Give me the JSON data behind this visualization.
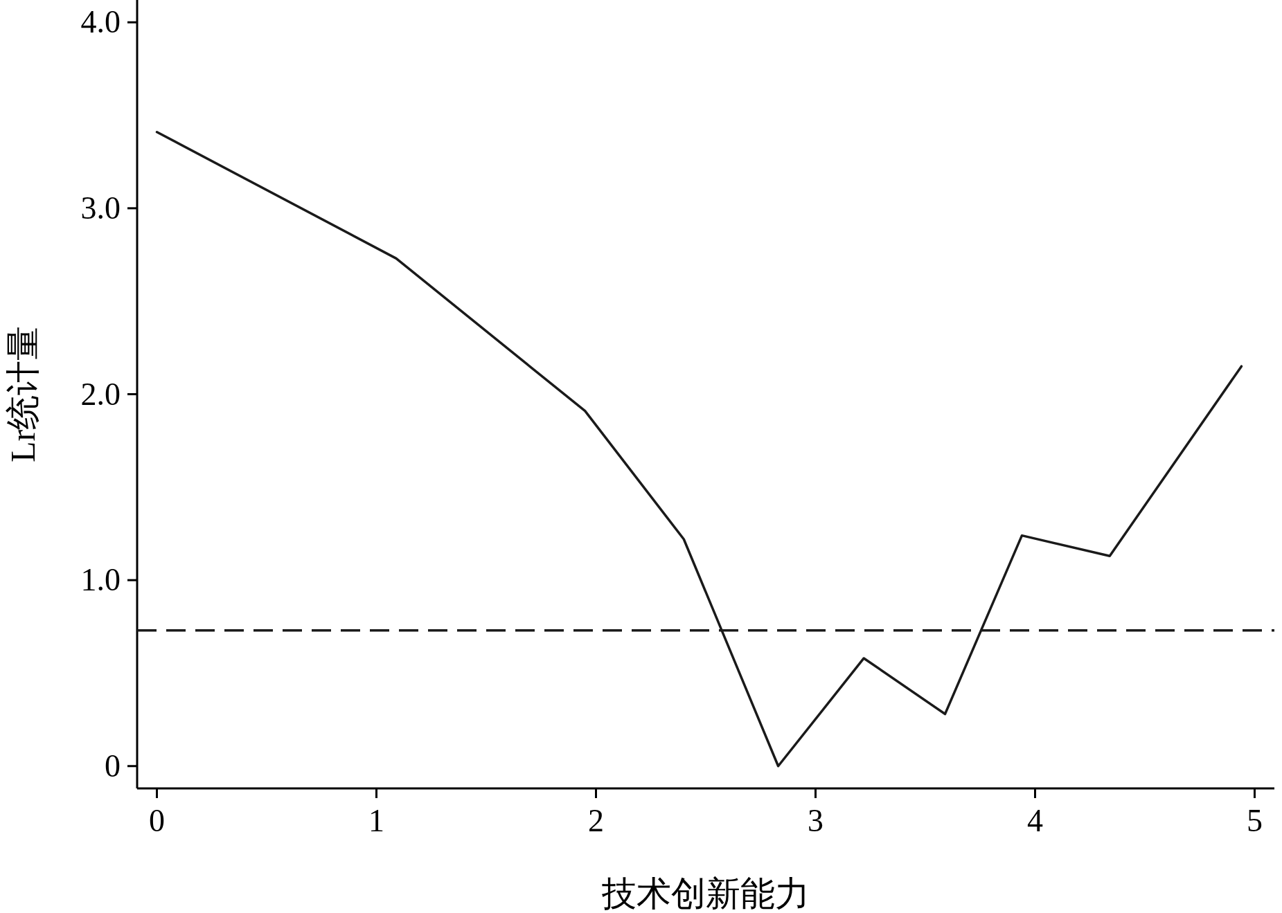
{
  "chart_data": {
    "type": "line",
    "xlabel": "技术创新能力",
    "ylabel": "Lr统计量",
    "x": [
      0,
      1.09,
      1.95,
      2.4,
      2.83,
      3.22,
      3.59,
      3.94,
      4.34,
      4.94
    ],
    "series": [
      {
        "color": "#1a1a1a",
        "values": [
          3.41,
          2.73,
          1.91,
          1.22,
          0.0,
          0.58,
          0.28,
          1.24,
          1.13,
          2.15
        ]
      }
    ],
    "xlim": [
      -0.09,
      5.09
    ],
    "xticks": [
      0,
      1,
      2,
      3,
      4,
      5
    ],
    "ylim": [
      -0.12,
      4.12
    ],
    "yticks": [
      {
        "value": 0,
        "label": "0"
      },
      {
        "value": 1,
        "label": "1.0"
      },
      {
        "value": 2,
        "label": "2.0"
      },
      {
        "value": 3,
        "label": "3.0"
      },
      {
        "value": 4,
        "label": "4.0"
      }
    ],
    "ref_lines": [
      {
        "axis": "y",
        "value": 0.73,
        "color": "#1a1a1a",
        "line_style": "dashed"
      }
    ],
    "grid": false,
    "marker": "none",
    "line_style": "solid"
  }
}
